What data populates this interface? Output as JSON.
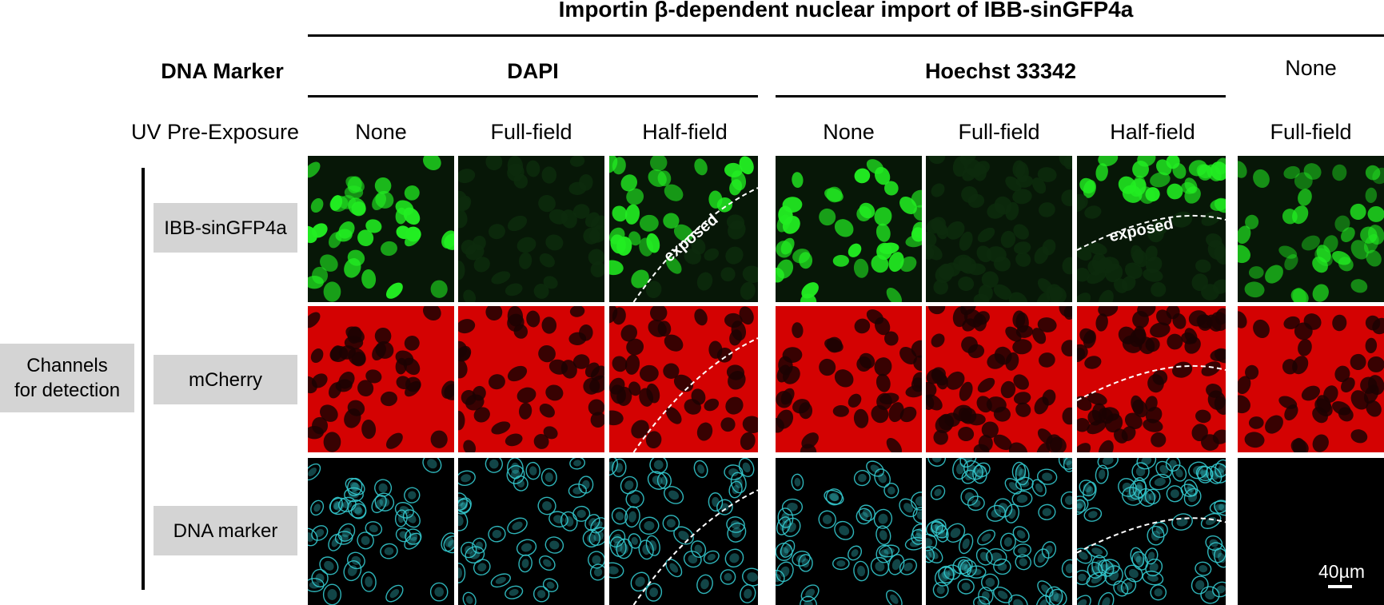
{
  "title": "Importin β-dependent nuclear import of IBB-sinGFP4a",
  "header": {
    "dna_marker_label": "DNA Marker",
    "uv_label": "UV Pre-Exposure",
    "groups": [
      {
        "name": "DAPI",
        "conditions": [
          "None",
          "Full-field",
          "Half-field"
        ]
      },
      {
        "name": "Hoechst 33342",
        "conditions": [
          "None",
          "Full-field",
          "Half-field"
        ]
      },
      {
        "name": "None",
        "conditions": [
          "Full-field"
        ]
      }
    ]
  },
  "row_axis_label": "Channels for detection",
  "row_axis_lines": [
    "Channels",
    "for detection"
  ],
  "rows": [
    {
      "label": "IBB-sinGFP4a",
      "channel": "green"
    },
    {
      "label": "mCherry",
      "channel": "red"
    },
    {
      "label": "DNA marker",
      "channel": "cyan"
    }
  ],
  "annotations": {
    "exposed_label": "exposed"
  },
  "scale_bar": {
    "label": "40µm"
  },
  "colors": {
    "gfp_bright": "#22ee22",
    "gfp_background": "#071707",
    "mcherry_background": "#d40202",
    "mcherry_nucleus": "#1c0202",
    "dna_stain": "#33c6cc",
    "dna_background": "#000000",
    "label_box": "#d4d4d4"
  }
}
